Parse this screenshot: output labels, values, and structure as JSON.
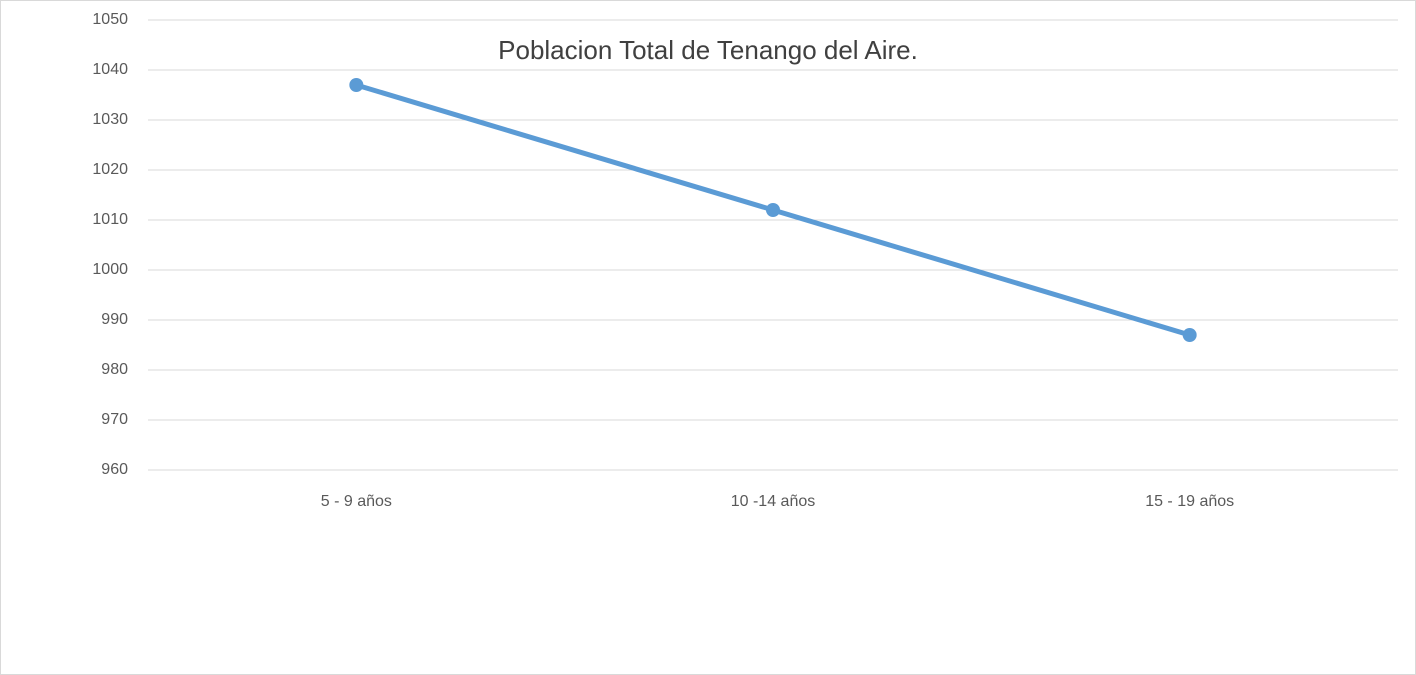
{
  "chart_data": {
    "type": "line",
    "title": "Poblacion Total de Tenango del Aire.",
    "categories": [
      "5 - 9 años",
      "10 -14 años",
      "15 - 19 años"
    ],
    "values": [
      1037,
      1012,
      987
    ],
    "color": "#5b9bd5",
    "ylim": [
      960,
      1050
    ],
    "yticks": [
      960,
      970,
      980,
      990,
      1000,
      1010,
      1020,
      1030,
      1040,
      1050
    ],
    "grid": true
  }
}
